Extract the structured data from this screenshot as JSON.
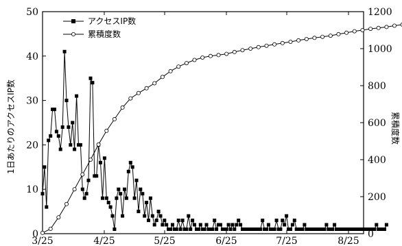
{
  "chart_data": {
    "type": "line",
    "x_tick_labels": [
      "3/25",
      "4/25",
      "5/25",
      "6/25",
      "7/25",
      "8/25"
    ],
    "y_left": {
      "label": "1日あたりのアクセスIP数",
      "ticks": [
        "0",
        "10",
        "20",
        "30",
        "40",
        "50"
      ],
      "range": [
        0,
        50
      ]
    },
    "y_right": {
      "label": "累積度数",
      "ticks": [
        "0",
        "200",
        "400",
        "600",
        "800",
        "1000",
        "1200"
      ],
      "range": [
        0,
        1200
      ]
    },
    "legend_position": "top-left",
    "series": [
      {
        "name": "アクセスIP数",
        "axis": "left",
        "marker": "filled-square",
        "points": [
          [
            0,
            9
          ],
          [
            1,
            15
          ],
          [
            2,
            6
          ],
          [
            3,
            21
          ],
          [
            4,
            22
          ],
          [
            5,
            28
          ],
          [
            6,
            28
          ],
          [
            7,
            23
          ],
          [
            8,
            22
          ],
          [
            9,
            19
          ],
          [
            10,
            24
          ],
          [
            11,
            41
          ],
          [
            12,
            30
          ],
          [
            13,
            24
          ],
          [
            14,
            20
          ],
          [
            15,
            25
          ],
          [
            16,
            19
          ],
          [
            17,
            31
          ],
          [
            18,
            20
          ],
          [
            19,
            20
          ],
          [
            20,
            10
          ],
          [
            21,
            8
          ],
          [
            22,
            9
          ],
          [
            23,
            12
          ],
          [
            24,
            35
          ],
          [
            25,
            34
          ],
          [
            26,
            13
          ],
          [
            27,
            13
          ],
          [
            28,
            20
          ],
          [
            29,
            16
          ],
          [
            30,
            8
          ],
          [
            31,
            17
          ],
          [
            32,
            8
          ],
          [
            33,
            7
          ],
          [
            34,
            6
          ],
          [
            35,
            4
          ],
          [
            36,
            1
          ],
          [
            37,
            8
          ],
          [
            38,
            10
          ],
          [
            39,
            9
          ],
          [
            40,
            4
          ],
          [
            41,
            10
          ],
          [
            42,
            8
          ],
          [
            43,
            14
          ],
          [
            44,
            16
          ],
          [
            45,
            15
          ],
          [
            46,
            8
          ],
          [
            47,
            12
          ],
          [
            48,
            5
          ],
          [
            49,
            10
          ],
          [
            50,
            9
          ],
          [
            51,
            4
          ],
          [
            52,
            7
          ],
          [
            53,
            3
          ],
          [
            54,
            8
          ],
          [
            55,
            4
          ],
          [
            56,
            2
          ],
          [
            57,
            3
          ],
          [
            58,
            5
          ],
          [
            59,
            4
          ],
          [
            60,
            2
          ],
          [
            61,
            3
          ],
          [
            62,
            2
          ],
          [
            63,
            1
          ],
          [
            64,
            1
          ],
          [
            65,
            2
          ],
          [
            66,
            1
          ],
          [
            67,
            1
          ],
          [
            68,
            3
          ],
          [
            69,
            1
          ],
          [
            70,
            3
          ],
          [
            71,
            1
          ],
          [
            72,
            1
          ],
          [
            73,
            4
          ],
          [
            74,
            1
          ],
          [
            75,
            3
          ],
          [
            76,
            2
          ],
          [
            77,
            1
          ],
          [
            78,
            1
          ],
          [
            79,
            2
          ],
          [
            80,
            1
          ],
          [
            81,
            1
          ],
          [
            82,
            2
          ],
          [
            83,
            1
          ],
          [
            84,
            1
          ],
          [
            85,
            1
          ],
          [
            86,
            3
          ],
          [
            87,
            1
          ],
          [
            88,
            2
          ],
          [
            89,
            2
          ],
          [
            90,
            1
          ],
          [
            91,
            1
          ],
          [
            92,
            1
          ],
          [
            93,
            2
          ],
          [
            94,
            1
          ],
          [
            95,
            2
          ],
          [
            96,
            1
          ],
          [
            97,
            2
          ],
          [
            98,
            3
          ],
          [
            99,
            2
          ],
          [
            100,
            1
          ],
          [
            101,
            1
          ],
          [
            102,
            1
          ],
          [
            103,
            1
          ],
          [
            104,
            1
          ],
          [
            105,
            1
          ],
          [
            106,
            1
          ],
          [
            107,
            1
          ],
          [
            108,
            1
          ],
          [
            109,
            1
          ],
          [
            110,
            3
          ],
          [
            111,
            1
          ],
          [
            112,
            1
          ],
          [
            113,
            2
          ],
          [
            114,
            1
          ],
          [
            115,
            1
          ],
          [
            116,
            1
          ],
          [
            117,
            3
          ],
          [
            118,
            1
          ],
          [
            119,
            1
          ],
          [
            120,
            3
          ],
          [
            121,
            2
          ],
          [
            122,
            4
          ],
          [
            123,
            1
          ],
          [
            124,
            1
          ],
          [
            125,
            2
          ],
          [
            126,
            3
          ],
          [
            127,
            1
          ],
          [
            128,
            1
          ],
          [
            129,
            1
          ],
          [
            130,
            1
          ],
          [
            131,
            2
          ],
          [
            132,
            1
          ],
          [
            133,
            1
          ],
          [
            134,
            1
          ],
          [
            135,
            1
          ],
          [
            136,
            1
          ],
          [
            137,
            1
          ],
          [
            138,
            1
          ],
          [
            139,
            1
          ],
          [
            140,
            1
          ],
          [
            141,
            1
          ],
          [
            142,
            2
          ],
          [
            143,
            1
          ],
          [
            144,
            1
          ],
          [
            145,
            1
          ],
          [
            146,
            2
          ],
          [
            147,
            1
          ],
          [
            148,
            1
          ],
          [
            149,
            1
          ],
          [
            150,
            1
          ],
          [
            151,
            1
          ],
          [
            152,
            1
          ],
          [
            153,
            1
          ],
          [
            154,
            1
          ],
          [
            155,
            1
          ],
          [
            156,
            1
          ],
          [
            157,
            1
          ],
          [
            158,
            1
          ],
          [
            159,
            1
          ],
          [
            160,
            1
          ],
          [
            161,
            1
          ],
          [
            162,
            1
          ],
          [
            163,
            1
          ],
          [
            164,
            1
          ],
          [
            165,
            1
          ],
          [
            166,
            1
          ],
          [
            167,
            2
          ],
          [
            168,
            1
          ],
          [
            169,
            1
          ],
          [
            170,
            1
          ],
          [
            171,
            1
          ],
          [
            172,
            2
          ]
        ]
      },
      {
        "name": "累積度数",
        "axis": "right",
        "marker": "open-circle",
        "points": [
          [
            0,
            4
          ],
          [
            4,
            26
          ],
          [
            8,
            88
          ],
          [
            12,
            160
          ],
          [
            16,
            240
          ],
          [
            20,
            320
          ],
          [
            24,
            400
          ],
          [
            28,
            482
          ],
          [
            32,
            556
          ],
          [
            36,
            619
          ],
          [
            40,
            682
          ],
          [
            44,
            731
          ],
          [
            48,
            760
          ],
          [
            52,
            786
          ],
          [
            56,
            813
          ],
          [
            60,
            847
          ],
          [
            64,
            878
          ],
          [
            68,
            903
          ],
          [
            72,
            922
          ],
          [
            76,
            939
          ],
          [
            80,
            952
          ],
          [
            84,
            960
          ],
          [
            88,
            965
          ],
          [
            92,
            972
          ],
          [
            96,
            982
          ],
          [
            100,
            992
          ],
          [
            104,
            1000
          ],
          [
            108,
            1008
          ],
          [
            112,
            1016
          ],
          [
            116,
            1023
          ],
          [
            120,
            1030
          ],
          [
            124,
            1037
          ],
          [
            128,
            1045
          ],
          [
            132,
            1052
          ],
          [
            136,
            1058
          ],
          [
            140,
            1064
          ],
          [
            144,
            1070
          ],
          [
            148,
            1078
          ],
          [
            152,
            1086
          ],
          [
            156,
            1094
          ],
          [
            160,
            1100
          ],
          [
            164,
            1107
          ],
          [
            168,
            1112
          ],
          [
            172,
            1117
          ],
          [
            176,
            1124
          ],
          [
            180,
            1130
          ],
          [
            184,
            1136
          ],
          [
            188,
            1141
          ],
          [
            192,
            1144
          ]
        ]
      }
    ]
  }
}
